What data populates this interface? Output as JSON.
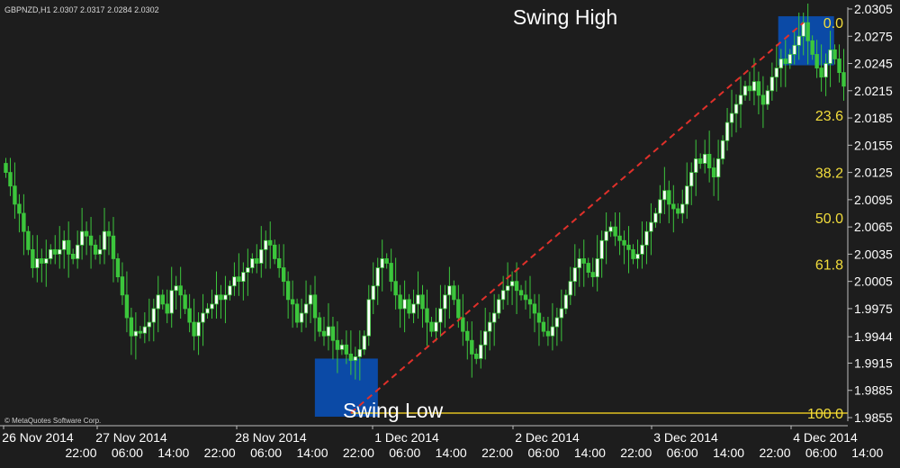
{
  "chart_data": {
    "type": "candlestick",
    "symbol_header": "GBPNZD,H1  2.0307 2.0317 2.0284 2.0302",
    "copyright": "© MetaQuotes Software Corp.",
    "y_ticks": [
      "2.0305",
      "2.0275",
      "2.0245",
      "2.0215",
      "2.0185",
      "2.0155",
      "2.0125",
      "2.0095",
      "2.0065",
      "2.0035",
      "2.0005",
      "1.9975",
      "1.9944",
      "1.9915",
      "1.9885",
      "1.9855"
    ],
    "ylim": [
      1.9855,
      2.0305
    ],
    "date_labels": [
      "26 Nov 2014",
      "27 Nov 2014",
      "28 Nov 2014",
      "1 Dec 2014",
      "2 Dec 2014",
      "3 Dec 2014",
      "4 Dec 2014"
    ],
    "time_labels": [
      "22:00",
      "06:00",
      "14:00",
      "22:00",
      "06:00",
      "14:00",
      "22:00",
      "06:00",
      "14:00",
      "22:00",
      "06:00",
      "14:00",
      "22:00",
      "06:00",
      "14:00",
      "22:00",
      "06:00",
      "14:00"
    ],
    "fib_levels": [
      {
        "label": "0.0",
        "value": 2.029
      },
      {
        "label": "23.6",
        "value": 2.0188
      },
      {
        "label": "38.2",
        "value": 2.0125
      },
      {
        "label": "50.0",
        "value": 2.0075
      },
      {
        "label": "61.8",
        "value": 2.0024
      },
      {
        "label": "100.0",
        "value": 1.986
      }
    ],
    "annotations": {
      "swing_high": "Swing High",
      "swing_low": "Swing Low"
    },
    "trend_line": {
      "from": {
        "bar": "swing_low",
        "price": 1.986
      },
      "to": {
        "bar": "swing_high",
        "price": 2.029
      }
    },
    "colors": {
      "background": "#1d1d1d",
      "candle": "#3cc63c",
      "fib_label": "#f2dd3c",
      "trend_line": "#e0302a",
      "highlight_box": "#0b4aa6",
      "baseline": "#e0c020",
      "text": "#ffffff"
    },
    "series_closes": [
      2.0125,
      2.011,
      2.009,
      2.008,
      2.006,
      2.004,
      2.002,
      2.003,
      2.0025,
      2.003,
      2.004,
      2.0035,
      2.004,
      2.005,
      2.0035,
      2.003,
      2.0045,
      2.006,
      2.0055,
      2.0045,
      2.0035,
      2.004,
      2.006,
      2.0055,
      2.003,
      2.001,
      1.999,
      1.9965,
      1.9945,
      1.995,
      1.9948,
      1.9955,
      1.996,
      1.9975,
      1.999,
      1.998,
      1.997,
      1.9995,
      2.0,
      1.999,
      1.9975,
      1.996,
      1.9945,
      1.996,
      1.997,
      1.9975,
      1.998,
      1.999,
      1.9985,
      1.999,
      2.0,
      2.001,
      2.0005,
      2.0015,
      2.002,
      2.003,
      2.0025,
      2.004,
      2.005,
      2.0045,
      2.003,
      2.002,
      2.0005,
      1.9985,
      1.998,
      1.996,
      1.997,
      1.998,
      1.999,
      1.9965,
      1.995,
      1.9945,
      1.9955,
      1.994,
      1.993,
      1.9935,
      1.9925,
      1.9918,
      1.9922,
      1.993,
      1.9945,
      1.9985,
      2.0,
      2.002,
      2.003,
      2.0025,
      2.0005,
      1.999,
      1.9975,
      1.9985,
      1.997,
      1.998,
      1.999,
      1.9975,
      1.996,
      1.995,
      1.996,
      1.9975,
      1.999,
      2.0,
      1.9985,
      1.9965,
      1.995,
      1.994,
      1.9925,
      1.992,
      1.9935,
      1.995,
      1.996,
      1.997,
      1.9985,
      1.9995,
      2.0,
      2.0005,
      1.9995,
      1.999,
      1.9985,
      1.998,
      1.997,
      1.996,
      1.995,
      1.9945,
      1.9955,
      1.9965,
      1.9975,
      1.999,
      2.0005,
      2.002,
      2.003,
      2.0025,
      2.0015,
      2.001,
      2.003,
      2.005,
      2.006,
      2.0065,
      2.0055,
      2.005,
      2.0045,
      2.004,
      2.003,
      2.0035,
      2.0045,
      2.006,
      2.007,
      2.008,
      2.0095,
      2.0105,
      2.009,
      2.0085,
      2.008,
      2.009,
      2.011,
      2.0125,
      2.014,
      2.0135,
      2.0145,
      2.013,
      2.012,
      2.014,
      2.016,
      2.018,
      2.019,
      2.02,
      2.021,
      2.022,
      2.0215,
      2.0225,
      2.021,
      2.02,
      2.0215,
      2.023,
      2.024,
      2.025,
      2.0245,
      2.0255,
      2.0265,
      2.0275,
      2.029,
      2.027,
      2.0255,
      2.024,
      2.023,
      2.0245,
      2.026,
      2.025,
      2.0235,
      2.022
    ]
  }
}
